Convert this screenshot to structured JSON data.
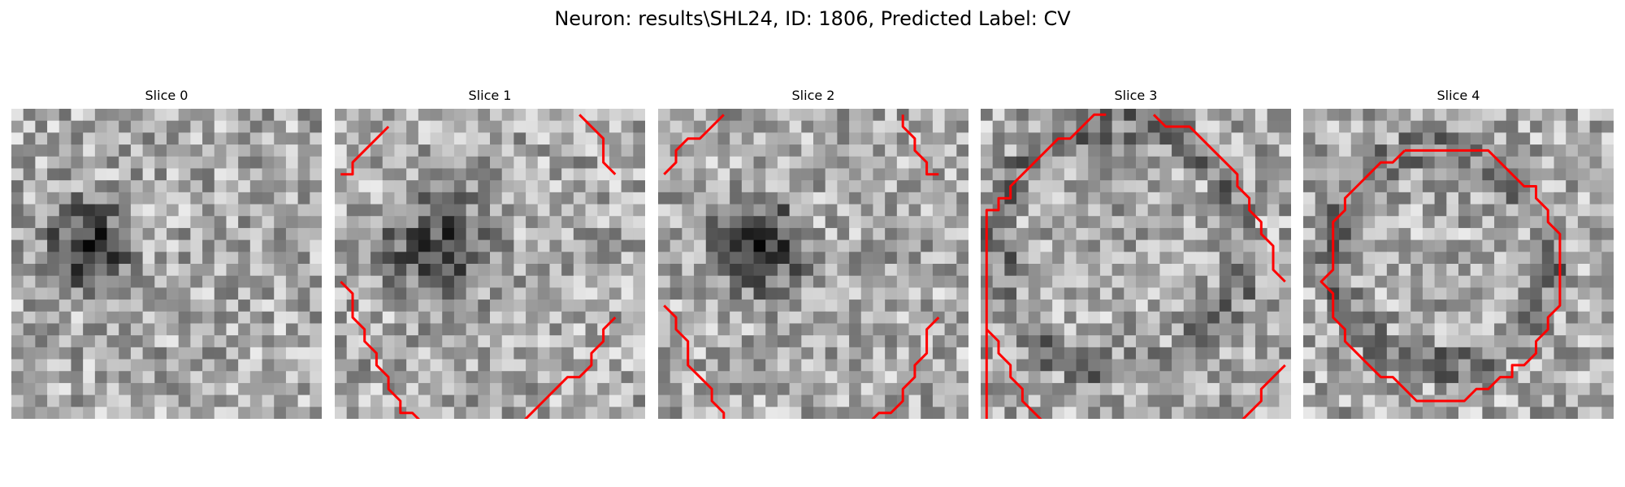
{
  "figure": {
    "title": "Neuron: results\\SHL24, ID: 1806, Predicted Label: CV"
  },
  "slices": [
    {
      "title": "Slice 0",
      "dark_center": [
        6,
        11
      ],
      "dark_radius": 5.2,
      "dark_strength": 0.55,
      "contour": []
    },
    {
      "title": "Slice 1",
      "dark_center": [
        8,
        11
      ],
      "dark_radius": 6.8,
      "dark_strength": 0.45,
      "contour": [
        [
          [
            4,
            1
          ],
          [
            1,
            4
          ],
          [
            1,
            5
          ],
          [
            0,
            5
          ]
        ],
        [
          [
            20,
            0
          ],
          [
            21,
            1
          ],
          [
            22,
            2
          ],
          [
            22,
            3
          ],
          [
            22,
            4
          ],
          [
            23,
            5
          ]
        ],
        [
          [
            0,
            14
          ],
          [
            1,
            15
          ],
          [
            1,
            17
          ],
          [
            2,
            18
          ],
          [
            2,
            19
          ],
          [
            3,
            20
          ],
          [
            3,
            21
          ],
          [
            4,
            22
          ],
          [
            4,
            23
          ],
          [
            5,
            24
          ],
          [
            5,
            25
          ],
          [
            6,
            25
          ],
          [
            7,
            26
          ]
        ],
        [
          [
            23,
            17
          ],
          [
            22,
            18
          ],
          [
            22,
            19
          ],
          [
            21,
            20
          ],
          [
            21,
            21
          ],
          [
            20,
            22
          ],
          [
            19,
            22
          ],
          [
            18,
            23
          ],
          [
            17,
            24
          ],
          [
            16,
            25
          ],
          [
            15,
            26
          ]
        ]
      ]
    },
    {
      "title": "Slice 2",
      "dark_center": [
        8,
        11
      ],
      "dark_radius": 5.5,
      "dark_strength": 0.6,
      "contour": [
        [
          [
            5,
            0
          ],
          [
            4,
            1
          ],
          [
            3,
            2
          ],
          [
            2,
            2
          ],
          [
            1,
            3
          ],
          [
            1,
            4
          ],
          [
            0,
            5
          ]
        ],
        [
          [
            20,
            0
          ],
          [
            20,
            1
          ],
          [
            21,
            2
          ],
          [
            21,
            3
          ],
          [
            22,
            4
          ],
          [
            22,
            5
          ],
          [
            23,
            5
          ]
        ],
        [
          [
            0,
            16
          ],
          [
            1,
            17
          ],
          [
            1,
            18
          ],
          [
            2,
            19
          ],
          [
            2,
            21
          ],
          [
            3,
            22
          ],
          [
            4,
            23
          ],
          [
            4,
            24
          ],
          [
            5,
            25
          ],
          [
            5,
            26
          ],
          [
            6,
            26
          ]
        ],
        [
          [
            23,
            17
          ],
          [
            22,
            18
          ],
          [
            22,
            20
          ],
          [
            21,
            21
          ],
          [
            21,
            22
          ],
          [
            20,
            23
          ],
          [
            20,
            24
          ],
          [
            19,
            25
          ],
          [
            18,
            25
          ],
          [
            17,
            26
          ]
        ]
      ]
    },
    {
      "title": "Slice 3",
      "dark_center": [
        11,
        11
      ],
      "dark_radius": 9.0,
      "dark_strength": 0.0,
      "contour": [
        [
          [
            0,
            26
          ],
          [
            0,
            8
          ],
          [
            1,
            8
          ],
          [
            1,
            7
          ],
          [
            2,
            7
          ],
          [
            2,
            6
          ],
          [
            3,
            5
          ],
          [
            4,
            4
          ],
          [
            5,
            3
          ],
          [
            6,
            2
          ],
          [
            7,
            2
          ],
          [
            8,
            1
          ],
          [
            9,
            0
          ],
          [
            10,
            0
          ]
        ],
        [
          [
            14,
            0
          ],
          [
            15,
            1
          ],
          [
            17,
            1
          ],
          [
            18,
            2
          ],
          [
            19,
            3
          ],
          [
            20,
            4
          ],
          [
            21,
            5
          ],
          [
            21,
            6
          ],
          [
            22,
            7
          ],
          [
            22,
            8
          ],
          [
            23,
            9
          ],
          [
            23,
            10
          ],
          [
            24,
            11
          ],
          [
            24,
            12
          ],
          [
            24,
            13
          ],
          [
            25,
            14
          ]
        ],
        [
          [
            0,
            18
          ],
          [
            1,
            19
          ],
          [
            1,
            20
          ],
          [
            2,
            21
          ],
          [
            2,
            22
          ],
          [
            3,
            23
          ],
          [
            3,
            24
          ],
          [
            4,
            25
          ],
          [
            5,
            26
          ]
        ],
        [
          [
            25,
            21
          ],
          [
            24,
            22
          ],
          [
            23,
            23
          ],
          [
            23,
            24
          ],
          [
            22,
            25
          ],
          [
            21,
            26
          ]
        ]
      ]
    },
    {
      "title": "Slice 4",
      "dark_center": [
        11,
        12
      ],
      "dark_radius": 7.5,
      "dark_strength": 0.0,
      "contour": [
        [
          [
            8,
            3
          ],
          [
            15,
            3
          ],
          [
            16,
            4
          ],
          [
            17,
            5
          ],
          [
            18,
            6
          ],
          [
            19,
            6
          ],
          [
            19,
            7
          ],
          [
            20,
            8
          ],
          [
            20,
            9
          ],
          [
            21,
            10
          ],
          [
            21,
            12
          ],
          [
            21,
            16
          ],
          [
            20,
            17
          ],
          [
            20,
            18
          ],
          [
            19,
            19
          ],
          [
            19,
            20
          ],
          [
            18,
            21
          ],
          [
            17,
            21
          ],
          [
            17,
            22
          ],
          [
            16,
            22
          ],
          [
            15,
            23
          ],
          [
            14,
            23
          ],
          [
            13,
            24
          ],
          [
            9,
            24
          ],
          [
            8,
            23
          ],
          [
            7,
            22
          ],
          [
            6,
            22
          ],
          [
            5,
            21
          ],
          [
            4,
            20
          ],
          [
            3,
            19
          ],
          [
            3,
            18
          ],
          [
            2,
            17
          ],
          [
            2,
            15
          ],
          [
            1,
            14
          ],
          [
            2,
            13
          ],
          [
            2,
            10
          ],
          [
            2,
            9
          ],
          [
            3,
            8
          ],
          [
            3,
            7
          ],
          [
            4,
            6
          ],
          [
            5,
            5
          ],
          [
            6,
            4
          ],
          [
            7,
            4
          ],
          [
            8,
            3
          ]
        ]
      ]
    }
  ],
  "colors": {
    "contour": "#ff0000",
    "background": "#ffffff"
  }
}
